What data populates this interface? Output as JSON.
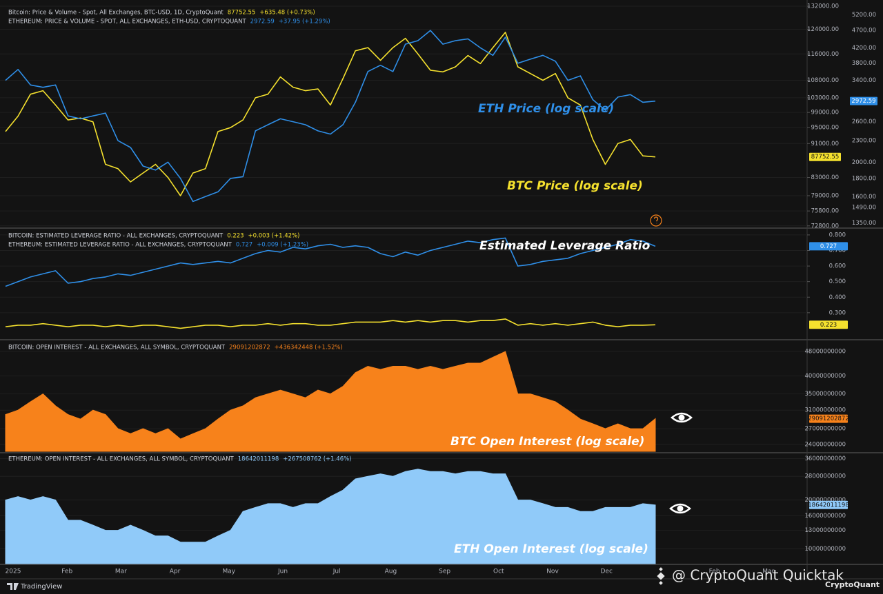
{
  "chart_data": [
    {
      "type": "line",
      "log_scale": true,
      "grid": true,
      "series": [
        {
          "name": "Bitcoin: Price & Volume - Spot, All Exchanges, BTC-USD, 1D, CryptoQuant",
          "change": "+635.48 (+0.73%)",
          "color": "#f5e12e",
          "values": [
            94000,
            98000,
            104000,
            105000,
            101000,
            97000,
            97500,
            96500,
            86000,
            85000,
            82000,
            84000,
            86000,
            83000,
            79000,
            84000,
            85000,
            94000,
            95000,
            97000,
            103000,
            104000,
            109000,
            106000,
            105000,
            105500,
            101000,
            108500,
            117000,
            118000,
            114000,
            118000,
            121000,
            116000,
            111000,
            110500,
            112000,
            115500,
            113000,
            118000,
            123000,
            112000,
            110000,
            108000,
            110000,
            103000,
            101000,
            92000,
            86000,
            91000,
            92000,
            88000,
            87752.55
          ]
        },
        {
          "name": "ETHEREUM: PRICE & VOLUME - SPOT, ALL EXCHANGES, ETH-USD, CRYPTOQUANT",
          "change": "+37.95 (+1.29%)",
          "color": "#2f8fe8",
          "axis": "y2",
          "values": [
            3400,
            3650,
            3300,
            3250,
            3300,
            2700,
            2650,
            2700,
            2750,
            2300,
            2200,
            1950,
            1900,
            2000,
            1800,
            1550,
            1600,
            1650,
            1800,
            1820,
            2450,
            2550,
            2650,
            2600,
            2550,
            2450,
            2400,
            2550,
            2950,
            3600,
            3750,
            3600,
            4300,
            4400,
            4700,
            4300,
            4400,
            4450,
            4200,
            4000,
            4500,
            3800,
            3900,
            4000,
            3850,
            3400,
            3500,
            3000,
            2800,
            3050,
            3100,
            2950,
            2972.59
          ]
        }
      ],
      "ylim": [
        72500,
        133000
      ],
      "yticks": [
        {
          "value": 132000,
          "label": "132000.00"
        },
        {
          "value": 124000,
          "label": "124000.00"
        },
        {
          "value": 116000,
          "label": "116000.00"
        },
        {
          "value": 108000,
          "label": "108000.00"
        },
        {
          "value": 103000,
          "label": "103000.00"
        },
        {
          "value": 99000,
          "label": "99000.00"
        },
        {
          "value": 95000,
          "label": "95000.00"
        },
        {
          "value": 91000,
          "label": "91000.00"
        },
        {
          "value": 83000,
          "label": "83000.00"
        },
        {
          "value": 79000,
          "label": "79000.00"
        },
        {
          "value": 75800,
          "label": "75800.00"
        },
        {
          "value": 72800,
          "label": "72800.00"
        }
      ],
      "y2lim": [
        1310,
        5600
      ],
      "y2ticks": [
        {
          "value": 5200,
          "label": "5200.00"
        },
        {
          "value": 4700,
          "label": "4700.00"
        },
        {
          "value": 4200,
          "label": "4200.00"
        },
        {
          "value": 3800,
          "label": "3800.00"
        },
        {
          "value": 3400,
          "label": "3400.00"
        },
        {
          "value": 2600,
          "label": "2600.00"
        },
        {
          "value": 2300,
          "label": "2300.00"
        },
        {
          "value": 2000,
          "label": "2000.00"
        },
        {
          "value": 1800,
          "label": "1800.00"
        },
        {
          "value": 1600,
          "label": "1600.00"
        },
        {
          "value": 1490,
          "label": "1490.00"
        },
        {
          "value": 1350,
          "label": "1350.00"
        }
      ],
      "annotations": [
        {
          "text": "ETH Price (log scale)",
          "color": "#2f8fe8"
        },
        {
          "text": "BTC Price (log scale)",
          "color": "#f5e12e"
        }
      ]
    },
    {
      "type": "line",
      "log_scale": false,
      "grid": true,
      "series": [
        {
          "name": "BITCOIN: ESTIMATED LEVERAGE RATIO - ALL EXCHANGES, CRYPTOQUANT",
          "change": "+0.003 (+1.42%)",
          "color": "#f5e12e",
          "values": [
            0.21,
            0.22,
            0.22,
            0.23,
            0.22,
            0.21,
            0.22,
            0.22,
            0.21,
            0.22,
            0.21,
            0.22,
            0.22,
            0.21,
            0.2,
            0.21,
            0.22,
            0.22,
            0.21,
            0.22,
            0.22,
            0.23,
            0.22,
            0.23,
            0.23,
            0.22,
            0.22,
            0.23,
            0.24,
            0.24,
            0.24,
            0.25,
            0.24,
            0.25,
            0.24,
            0.25,
            0.25,
            0.24,
            0.25,
            0.25,
            0.26,
            0.22,
            0.23,
            0.22,
            0.23,
            0.22,
            0.23,
            0.24,
            0.22,
            0.21,
            0.22,
            0.22,
            0.223
          ]
        },
        {
          "name": "ETHEREUM: ESTIMATED LEVERAGE RATIO - ALL EXCHANGES, CRYPTOQUANT",
          "change": "+0.009 (+1.23%)",
          "color": "#2f8fe8",
          "values": [
            0.47,
            0.5,
            0.53,
            0.55,
            0.57,
            0.49,
            0.5,
            0.52,
            0.53,
            0.55,
            0.54,
            0.56,
            0.58,
            0.6,
            0.62,
            0.61,
            0.62,
            0.63,
            0.62,
            0.65,
            0.68,
            0.7,
            0.69,
            0.72,
            0.71,
            0.73,
            0.74,
            0.72,
            0.73,
            0.72,
            0.68,
            0.66,
            0.69,
            0.67,
            0.7,
            0.72,
            0.74,
            0.76,
            0.75,
            0.77,
            0.78,
            0.6,
            0.61,
            0.63,
            0.64,
            0.65,
            0.68,
            0.7,
            0.72,
            0.74,
            0.77,
            0.76,
            0.727
          ]
        }
      ],
      "ylim": [
        0.14,
        0.835
      ],
      "yticks": [
        {
          "value": 0.8,
          "label": "0.800"
        },
        {
          "value": 0.7,
          "label": "0.700"
        },
        {
          "value": 0.6,
          "label": "0.600"
        },
        {
          "value": 0.5,
          "label": "0.500"
        },
        {
          "value": 0.4,
          "label": "0.400"
        },
        {
          "value": 0.3,
          "label": "0.300"
        }
      ],
      "annotations": [
        {
          "text": "Estimated Leverage Ratio",
          "color": "#ffffff"
        }
      ]
    },
    {
      "type": "area",
      "log_scale": true,
      "grid": true,
      "series": [
        {
          "name": "BITCOIN: OPEN INTEREST - ALL EXCHANGES, ALL SYMBOL, CRYPTOQUANT",
          "change": "+436342448 (+1.52%)",
          "color": "#f7821b",
          "values": [
            30000000000,
            31000000000,
            33000000000,
            35000000000,
            32000000000,
            30000000000,
            29000000000,
            31000000000,
            30000000000,
            27000000000,
            26000000000,
            27000000000,
            26000000000,
            27000000000,
            25000000000,
            26000000000,
            27000000000,
            29000000000,
            31000000000,
            32000000000,
            34000000000,
            35000000000,
            36000000000,
            35000000000,
            34000000000,
            36000000000,
            35000000000,
            37000000000,
            41000000000,
            43000000000,
            42000000000,
            43000000000,
            43000000000,
            42000000000,
            43000000000,
            42000000000,
            43000000000,
            44000000000,
            44000000000,
            46000000000,
            48000000000,
            35000000000,
            35000000000,
            34000000000,
            33000000000,
            31000000000,
            29000000000,
            28000000000,
            27000000000,
            28000000000,
            27000000000,
            27000000000,
            29091202872
          ]
        }
      ],
      "ylim": [
        22800000000,
        51600000000
      ],
      "yticks": [
        48000000000,
        40000000000,
        35000000000,
        31000000000,
        27000000000,
        24000000000
      ],
      "annotations": [
        {
          "text": "BTC Open Interest (log scale)",
          "color": "#ffffff"
        }
      ]
    },
    {
      "type": "area",
      "log_scale": true,
      "grid": true,
      "series": [
        {
          "name": "ETHEREUM: OPEN INTEREST - ALL EXCHANGES, ALL SYMBOL, CRYPTOQUANT",
          "change": "+267508762 (+1.46%)",
          "color": "#90caf9",
          "values": [
            20000000000,
            21000000000,
            20000000000,
            21000000000,
            20000000000,
            15000000000,
            15000000000,
            14000000000,
            13000000000,
            13000000000,
            14000000000,
            13000000000,
            12000000000,
            12000000000,
            11000000000,
            11000000000,
            11000000000,
            12000000000,
            13000000000,
            17000000000,
            18000000000,
            19000000000,
            19000000000,
            18000000000,
            19000000000,
            19000000000,
            21000000000,
            23000000000,
            27000000000,
            28000000000,
            29000000000,
            28000000000,
            30000000000,
            31000000000,
            30000000000,
            30000000000,
            29000000000,
            30000000000,
            30000000000,
            29000000000,
            29000000000,
            20000000000,
            20000000000,
            19000000000,
            18000000000,
            18000000000,
            17000000000,
            17000000000,
            18000000000,
            18000000000,
            18000000000,
            19000000000,
            18642011198
          ]
        }
      ],
      "ylim": [
        8100000000,
        38000000000
      ],
      "yticks": [
        36000000000,
        28000000000,
        20000000000,
        16000000000,
        13000000000,
        10000000000
      ],
      "annotations": [
        {
          "text": "ETH Open Interest (log scale)",
          "color": "#ffffff"
        }
      ]
    }
  ],
  "x_axis": {
    "labels": [
      "2025",
      "Feb",
      "Mar",
      "Apr",
      "May",
      "Jun",
      "Jul",
      "Aug",
      "Sep",
      "Oct",
      "Nov",
      "Dec",
      null,
      "Feb",
      "Mar"
    ]
  },
  "footer": {
    "platform": "TradingView",
    "watermark": "@ CryptoQuant Quicktak",
    "brand": "CryptoQuant"
  }
}
